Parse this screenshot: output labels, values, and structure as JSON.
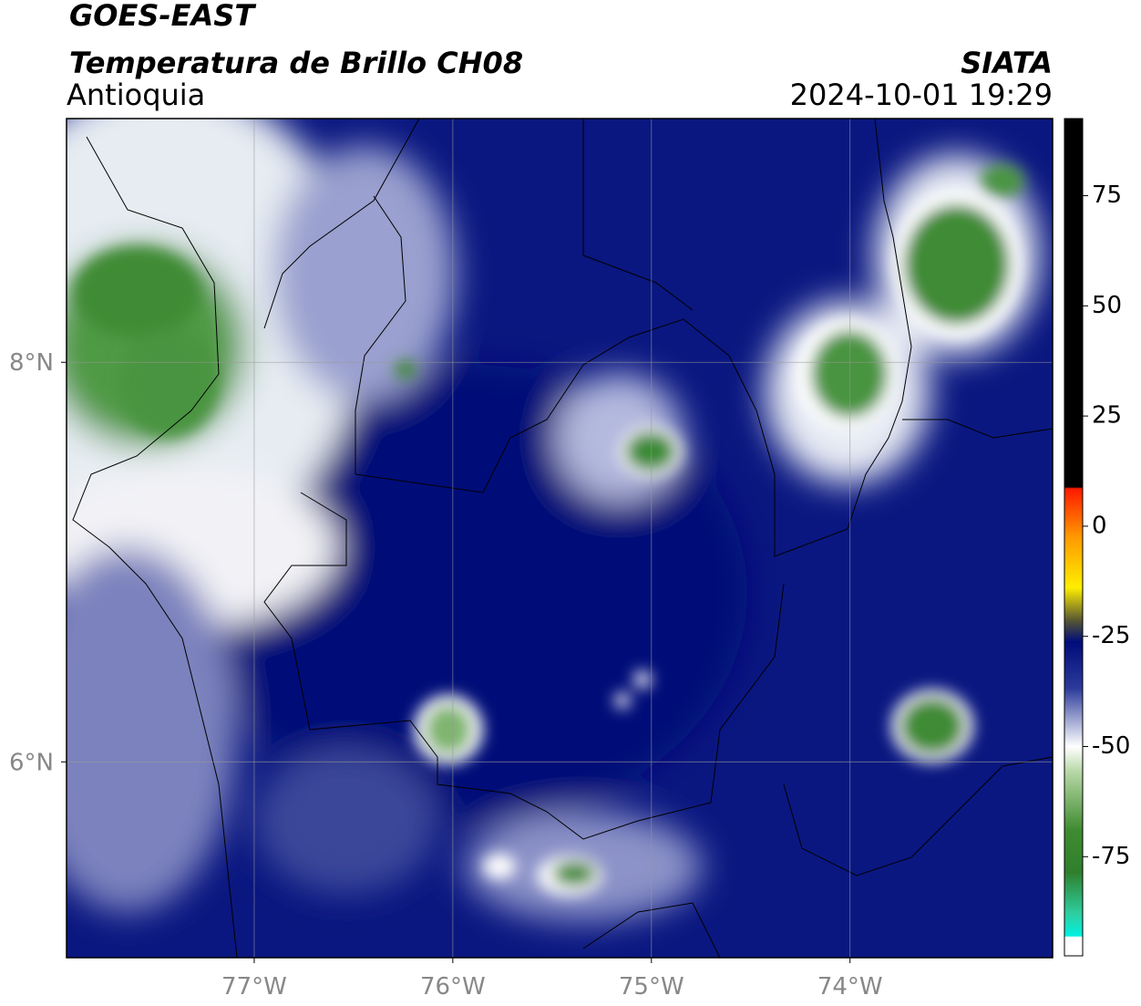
{
  "header": {
    "title": "GOES-EAST",
    "subtitle": "Temperatura de Brillo CH08",
    "region": "Antioquia",
    "source": "SIATA",
    "datetime": "2024-10-01 19:29"
  },
  "map": {
    "xlim": [
      -77.945,
      -72.98
    ],
    "ylim": [
      5.02,
      9.22
    ],
    "xticks": [
      {
        "value": -77,
        "label": "77°W"
      },
      {
        "value": -76,
        "label": "76°W"
      },
      {
        "value": -75,
        "label": "75°W"
      },
      {
        "value": -74,
        "label": "74°W"
      }
    ],
    "yticks": [
      {
        "value": 8,
        "label": "8°N"
      },
      {
        "value": 6,
        "label": "6°N"
      }
    ]
  },
  "colorbar": {
    "lim": [
      -97.5,
      92.5
    ],
    "ticks": [
      75,
      50,
      25,
      0,
      -25,
      -50,
      -75
    ]
  }
}
